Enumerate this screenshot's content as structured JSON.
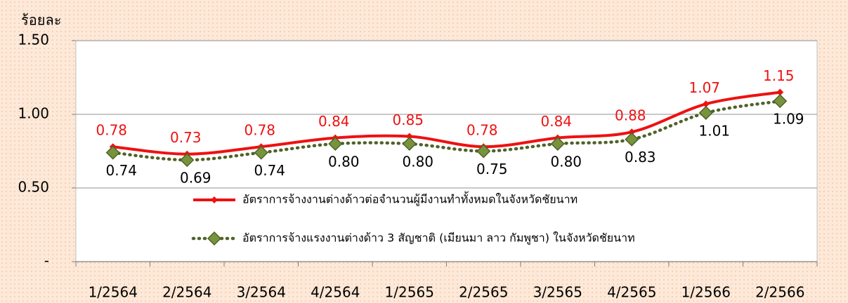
{
  "chart_data": {
    "type": "line",
    "y_label": "ร้อยละ",
    "categories": [
      "1/2564",
      "2/2564",
      "3/2564",
      "4/2564",
      "1/2565",
      "2/2565",
      "3/2565",
      "4/2565",
      "1/2566",
      "2/2566"
    ],
    "series": [
      {
        "name": "อัตราการจ้างงานต่างด้าวต่อจำนวนผู้มีงานทำทั้งหมดในจังหวัดชัยนาท",
        "color": "#ee1111",
        "values": [
          0.78,
          0.73,
          0.78,
          0.84,
          0.85,
          0.78,
          0.84,
          0.88,
          1.07,
          1.15
        ],
        "value_labels": [
          "0.78",
          "0.73",
          "0.78",
          "0.84",
          "0.85",
          "0.78",
          "0.84",
          "0.88",
          "1.07",
          "1.15"
        ]
      },
      {
        "name": "อัตราการจ้างแรงงานต่างด้าว 3 สัญชาติ (เมียนมา ลาว กัมพูชา) ในจังหวัดชัยนาท",
        "color": "#4f6228",
        "values": [
          0.74,
          0.69,
          0.74,
          0.8,
          0.8,
          0.75,
          0.8,
          0.83,
          1.01,
          1.09
        ],
        "value_labels": [
          "0.74",
          "0.69",
          "0.74",
          "0.80",
          "0.80",
          "0.75",
          "0.80",
          "0.83",
          "1.01",
          "1.09"
        ]
      }
    ],
    "ylim": [
      0,
      1.5
    ],
    "yticks": [
      {
        "value": 0,
        "label": "-"
      },
      {
        "value": 0.5,
        "label": "0.50"
      },
      {
        "value": 1,
        "label": "1.00"
      },
      {
        "value": 1.5,
        "label": "1.50"
      }
    ],
    "grid": true
  }
}
